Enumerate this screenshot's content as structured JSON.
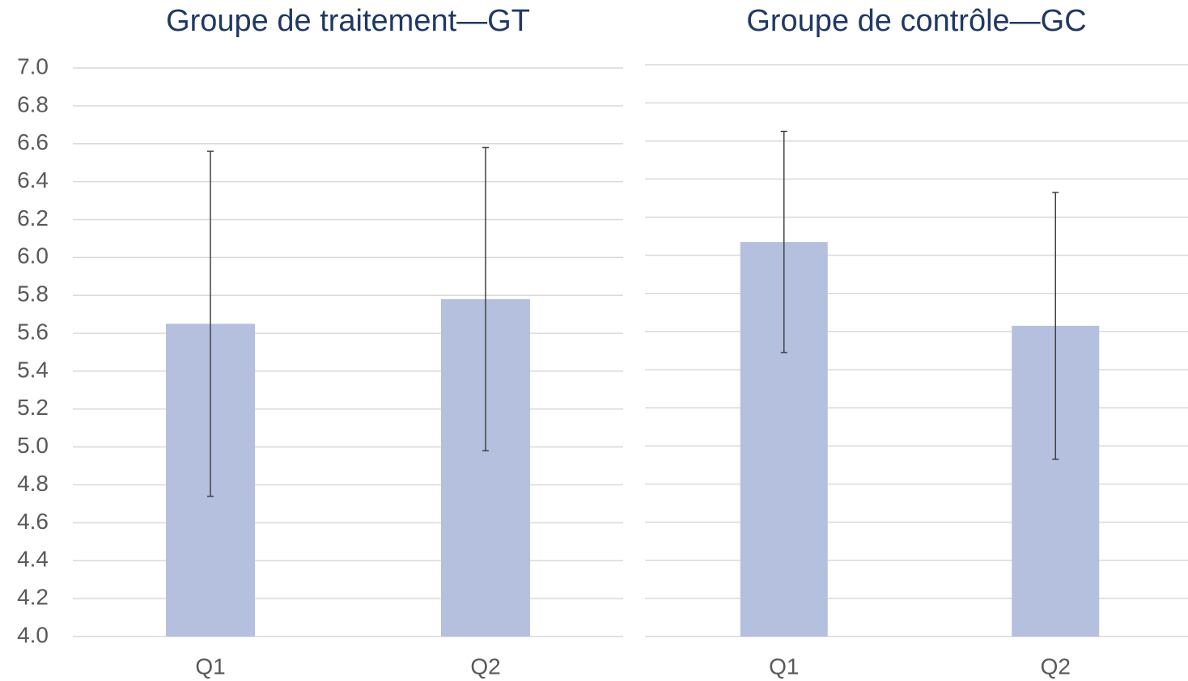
{
  "chart_data": [
    {
      "type": "bar",
      "title": "Groupe de traitement—GT",
      "categories": [
        "Q1",
        "Q2"
      ],
      "values": [
        5.65,
        5.78
      ],
      "errors": [
        0.91,
        0.8
      ],
      "color": "#b4c0de",
      "error_color": "#404040",
      "ylim": [
        4,
        7
      ],
      "yticks": [
        {
          "value": 4,
          "label": "4.0"
        },
        4.2,
        4.4,
        4.6,
        4.8,
        {
          "value": 5,
          "label": "5.0"
        },
        5.2,
        5.4,
        5.6,
        5.8,
        {
          "value": 6,
          "label": "6.0"
        },
        6.2,
        6.4,
        6.6,
        6.8,
        {
          "value": 7,
          "label": "7.0"
        }
      ],
      "tick_labels": true,
      "grid": true
    },
    {
      "type": "bar",
      "title": "Groupe de contrôle—GC",
      "categories": [
        "Q1",
        "Q2"
      ],
      "values": [
        6.07,
        5.63
      ],
      "errors": [
        0.58,
        0.7
      ],
      "color": "#b4c0de",
      "error_color": "#404040",
      "ylim": [
        4,
        7
      ],
      "yticks": [
        4,
        4.2,
        4.4,
        4.6,
        4.8,
        5,
        5.2,
        5.4,
        5.6,
        5.8,
        6,
        6.2,
        6.4,
        6.6,
        6.8,
        7
      ],
      "tick_labels": false,
      "grid": true
    }
  ]
}
